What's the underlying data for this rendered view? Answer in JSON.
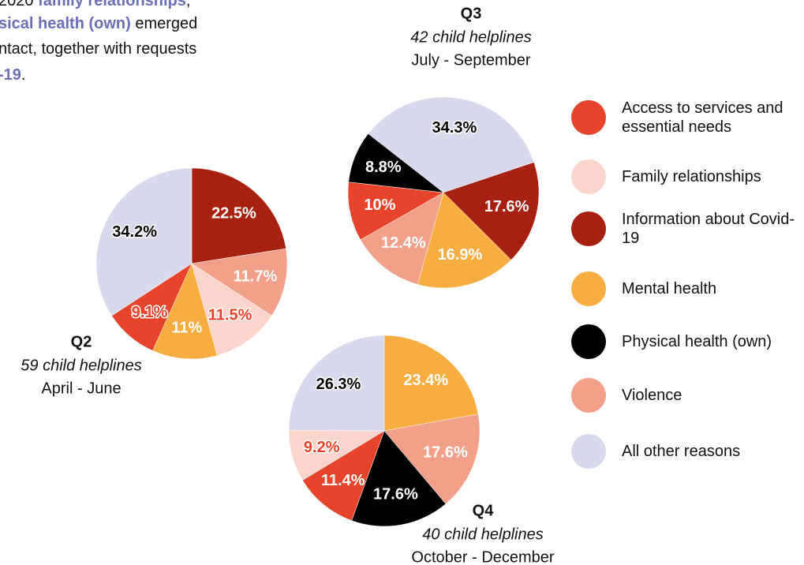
{
  "intro": {
    "highlight_color": "#6b6fb5",
    "lines": [
      [
        {
          "text": "2020 "
        },
        {
          "text": "family relationships",
          "bold": true
        },
        {
          "text": ","
        }
      ],
      [
        {
          "text": "sical health (own)",
          "bold": true
        },
        {
          "text": " emerged"
        }
      ],
      [
        {
          "text": "ntact, together with requests"
        }
      ],
      [
        {
          "text": "-19",
          "bold": true
        },
        {
          "text": "."
        }
      ]
    ]
  },
  "legend": {
    "categories": [
      "Access to services and essential needs",
      "Family relationships",
      "Information about Covid-19",
      "Mental health",
      "Physical health (own)",
      "Violence",
      "All other reasons"
    ],
    "colors": [
      "#e8432b",
      "#fbd5cc",
      "#a8200f",
      "#f7ad3f",
      "#000000",
      "#f2a08a",
      "#d8d9ec"
    ]
  },
  "chart_data": [
    {
      "type": "pie",
      "title": "Q2",
      "subtitle": "59 child helplines",
      "period": "April - June",
      "categories": [
        "Information about Covid-19",
        "Violence",
        "Family relationships",
        "Mental health",
        "Access to services and essential needs",
        "All other reasons"
      ],
      "values": [
        22.5,
        11.7,
        11.5,
        11,
        9.1,
        34.2
      ],
      "value_labels": [
        "22.5%",
        "11.7%",
        "11.5%",
        "11%",
        "9.1%",
        "34.2%"
      ],
      "label_colors": [
        "#ffffff",
        "#ffffff",
        "#e8432b",
        "#ffffff",
        "#e8432b",
        "#000000"
      ]
    },
    {
      "type": "pie",
      "title": "Q3",
      "subtitle": "42 child helplines",
      "period": "July - September",
      "categories": [
        "All other reasons",
        "Information about Covid-19",
        "Mental health",
        "Violence",
        "Access to services and essential needs",
        "Physical health (own)"
      ],
      "values": [
        34.3,
        17.6,
        16.9,
        12.4,
        10,
        8.8
      ],
      "value_labels": [
        "34.3%",
        "17.6%",
        "16.9%",
        "12.4%",
        "10%",
        "8.8%"
      ],
      "label_colors": [
        "#000000",
        "#ffffff",
        "#ffffff",
        "#ffffff",
        "#ffffff",
        "#ffffff"
      ]
    },
    {
      "type": "pie",
      "title": "Q4",
      "subtitle": "40 child helplines",
      "period": "October - December",
      "categories": [
        "Mental health",
        "Violence",
        "Physical health (own)",
        "Access to services and essential needs",
        "Family relationships",
        "All other reasons"
      ],
      "values": [
        23.4,
        17.6,
        17.6,
        11.4,
        9.2,
        26.3
      ],
      "value_labels": [
        "23.4%",
        "17.6%",
        "17.6%",
        "11.4%",
        "9.2%",
        "26.3%"
      ],
      "label_colors": [
        "#ffffff",
        "#ffffff",
        "#ffffff",
        "#ffffff",
        "#e8432b",
        "#000000"
      ]
    }
  ]
}
